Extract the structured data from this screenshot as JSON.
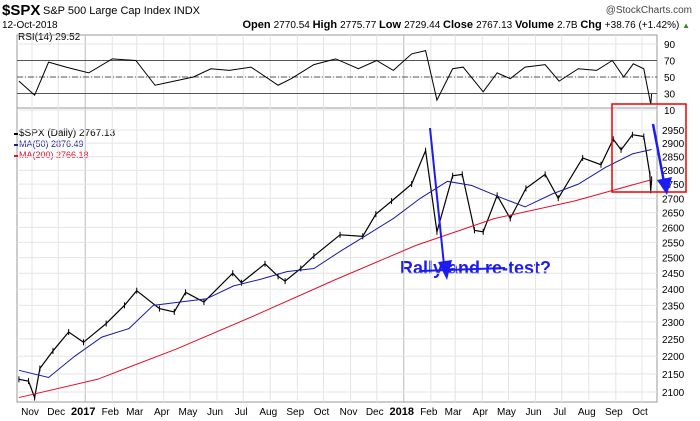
{
  "header": {
    "symbol": "$SPX",
    "name": "S&P 500 Large Cap Index",
    "exchange": "INDX",
    "watermark": "@StockCharts.com",
    "date": "12-Oct-2018",
    "quote": [
      {
        "label": "Open",
        "value": "2770.54"
      },
      {
        "label": "High",
        "value": "2775.77"
      },
      {
        "label": "Low",
        "value": "2729.44"
      },
      {
        "label": "Close",
        "value": "2767.13"
      },
      {
        "label": "Volume",
        "value": "2.7B"
      },
      {
        "label": "Chg",
        "value": "+38.76 (+1.42%)"
      }
    ],
    "chg_icon": "up-triangle-icon"
  },
  "chart_data": [
    {
      "type": "line",
      "title": "RSI(14) 29.52",
      "ylim": [
        10,
        100
      ],
      "ticks": [
        90,
        70,
        50,
        30,
        10
      ],
      "ref_lines": [
        70,
        50,
        30
      ],
      "series": [
        {
          "name": "RSI(14)",
          "x": [
            "2016-10-17",
            "2016-11-04",
            "2016-11-20",
            "2016-12-10",
            "2017-01-05",
            "2017-02-01",
            "2017-02-28",
            "2017-03-22",
            "2017-04-13",
            "2017-05-05",
            "2017-05-25",
            "2017-06-15",
            "2017-07-10",
            "2017-08-10",
            "2017-08-25",
            "2017-09-20",
            "2017-10-15",
            "2017-11-10",
            "2017-12-01",
            "2017-12-20",
            "2018-01-10",
            "2018-01-26",
            "2018-02-08",
            "2018-02-26",
            "2018-03-10",
            "2018-04-02",
            "2018-04-18",
            "2018-05-03",
            "2018-05-20",
            "2018-06-12",
            "2018-06-28",
            "2018-07-20",
            "2018-08-10",
            "2018-08-28",
            "2018-09-10",
            "2018-09-21",
            "2018-10-03",
            "2018-10-11",
            "2018-10-12"
          ],
          "values": [
            45,
            28,
            68,
            62,
            55,
            72,
            70,
            40,
            45,
            50,
            60,
            58,
            62,
            40,
            48,
            65,
            72,
            60,
            70,
            58,
            78,
            82,
            22,
            60,
            62,
            32,
            55,
            48,
            62,
            65,
            45,
            60,
            58,
            70,
            50,
            66,
            60,
            17,
            29.52
          ]
        }
      ],
      "grid": true
    },
    {
      "type": "line",
      "scale": "log",
      "legend": [
        {
          "label": "$SPX (Daily) 2767.13",
          "color": "#000000"
        },
        {
          "label": "MA(50) 2876.49",
          "color": "#1a1aa0"
        },
        {
          "label": "MA(200) 2766.18",
          "color": "#e0102e"
        }
      ],
      "ylim": [
        2070,
        3000
      ],
      "ticks": [
        2950,
        2900,
        2850,
        2800,
        2750,
        2700,
        2650,
        2600,
        2550,
        2500,
        2450,
        2400,
        2350,
        2300,
        2250,
        2200,
        2150,
        2100
      ],
      "xticks": [
        "Nov",
        "Dec",
        "2017",
        "Feb",
        "Mar",
        "Apr",
        "May",
        "Jun",
        "Jul",
        "Aug",
        "Sep",
        "Oct",
        "Nov",
        "Dec",
        "2018",
        "Feb",
        "Mar",
        "Apr",
        "May",
        "Jun",
        "Jul",
        "Aug",
        "Sep",
        "Oct"
      ],
      "series": [
        {
          "name": "$SPX",
          "x": [
            "2016-10-17",
            "2016-10-28",
            "2016-11-04",
            "2016-11-10",
            "2016-11-25",
            "2016-12-13",
            "2016-12-30",
            "2017-01-25",
            "2017-02-15",
            "2017-03-01",
            "2017-03-27",
            "2017-04-13",
            "2017-04-26",
            "2017-05-17",
            "2017-06-19",
            "2017-06-29",
            "2017-07-26",
            "2017-08-10",
            "2017-08-18",
            "2017-09-05",
            "2017-09-20",
            "2017-10-20",
            "2017-11-15",
            "2017-11-30",
            "2017-12-18",
            "2018-01-10",
            "2018-01-26",
            "2018-02-08",
            "2018-02-26",
            "2018-03-09",
            "2018-03-23",
            "2018-04-02",
            "2018-04-18",
            "2018-05-03",
            "2018-05-21",
            "2018-06-12",
            "2018-06-27",
            "2018-07-25",
            "2018-08-15",
            "2018-08-29",
            "2018-09-07",
            "2018-09-20",
            "2018-10-03",
            "2018-10-10",
            "2018-10-11",
            "2018-10-12"
          ],
          "values": [
            2135,
            2130,
            2085,
            2165,
            2215,
            2270,
            2240,
            2295,
            2350,
            2395,
            2340,
            2330,
            2390,
            2360,
            2450,
            2420,
            2480,
            2440,
            2425,
            2465,
            2505,
            2575,
            2570,
            2645,
            2690,
            2750,
            2872,
            2585,
            2780,
            2785,
            2590,
            2585,
            2710,
            2630,
            2735,
            2785,
            2700,
            2845,
            2820,
            2915,
            2875,
            2932,
            2925,
            2785,
            2728,
            2767.13
          ]
        },
        {
          "name": "MA(50)",
          "x": [
            "2016-10-17",
            "2016-11-20",
            "2016-12-20",
            "2017-01-20",
            "2017-02-20",
            "2017-03-20",
            "2017-04-20",
            "2017-05-20",
            "2017-06-20",
            "2017-07-20",
            "2017-08-20",
            "2017-09-20",
            "2017-10-20",
            "2017-11-20",
            "2017-12-20",
            "2018-01-20",
            "2018-02-20",
            "2018-03-20",
            "2018-04-20",
            "2018-05-20",
            "2018-06-20",
            "2018-07-20",
            "2018-08-20",
            "2018-09-20",
            "2018-10-12"
          ],
          "values": [
            2160,
            2140,
            2200,
            2255,
            2280,
            2350,
            2360,
            2370,
            2410,
            2430,
            2455,
            2465,
            2520,
            2575,
            2630,
            2700,
            2760,
            2745,
            2705,
            2670,
            2715,
            2750,
            2810,
            2860,
            2876.49
          ]
        },
        {
          "name": "MA(200)",
          "x": [
            "2016-10-17",
            "2017-01-15",
            "2017-04-15",
            "2017-07-15",
            "2017-10-15",
            "2018-01-15",
            "2018-04-15",
            "2018-07-15",
            "2018-10-12"
          ],
          "values": [
            2085,
            2135,
            2220,
            2320,
            2430,
            2540,
            2630,
            2690,
            2766.18
          ]
        }
      ]
    },
    {
      "type": "annotation",
      "text": "Rally and re-test?"
    }
  ]
}
